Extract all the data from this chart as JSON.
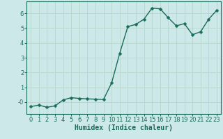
{
  "x": [
    0,
    1,
    2,
    3,
    4,
    5,
    6,
    7,
    8,
    9,
    10,
    11,
    12,
    13,
    14,
    15,
    16,
    17,
    18,
    19,
    20,
    21,
    22,
    23
  ],
  "y": [
    -0.3,
    -0.2,
    -0.35,
    -0.25,
    0.15,
    0.3,
    0.25,
    0.22,
    0.2,
    0.18,
    1.3,
    3.3,
    5.1,
    5.25,
    5.6,
    6.35,
    6.3,
    5.7,
    5.15,
    5.3,
    4.55,
    4.75,
    5.6,
    6.2
  ],
  "line_color": "#1a6b5a",
  "marker": "D",
  "marker_size": 2.5,
  "bg_color": "#cce8e8",
  "grid_color": "#b8d8d0",
  "xlabel": "Humidex (Indice chaleur)",
  "xlim": [
    -0.5,
    23.5
  ],
  "ylim": [
    -0.8,
    6.8
  ],
  "yticks": [
    0,
    1,
    2,
    3,
    4,
    5,
    6
  ],
  "ytick_labels": [
    "-0",
    "1",
    "2",
    "3",
    "4",
    "5",
    "6"
  ],
  "xticks": [
    0,
    1,
    2,
    3,
    4,
    5,
    6,
    7,
    8,
    9,
    10,
    11,
    12,
    13,
    14,
    15,
    16,
    17,
    18,
    19,
    20,
    21,
    22,
    23
  ],
  "tick_color": "#1a6b5a",
  "label_color": "#1a6b5a",
  "xlabel_fontsize": 7,
  "tick_fontsize": 6,
  "linewidth": 1.0
}
